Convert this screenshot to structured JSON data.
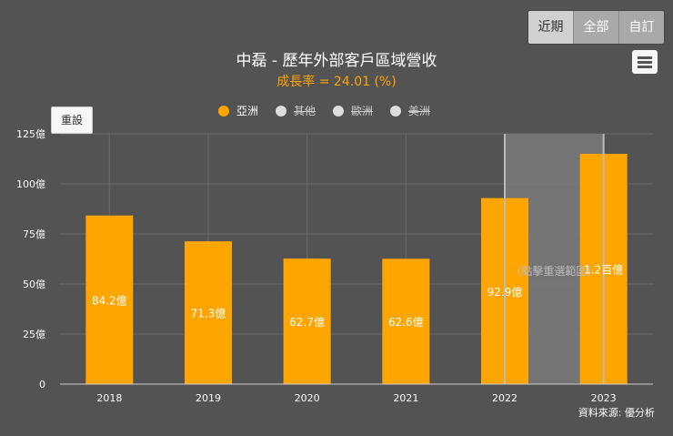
{
  "toolbar": {
    "buttons": [
      {
        "label": "近期",
        "active": true
      },
      {
        "label": "全部",
        "active": false
      },
      {
        "label": "自訂",
        "active": false
      }
    ],
    "menu_icon": "hamburger-icon",
    "reset_label": "重設"
  },
  "source": "資料來源: 優分析",
  "chart_data": {
    "type": "bar",
    "title": "中磊 - 歷年外部客戶區域營收",
    "subtitle": "成長率 = 24.01 (%)",
    "categories": [
      "2018",
      "2019",
      "2020",
      "2021",
      "2022",
      "2023"
    ],
    "series": [
      {
        "name": "亞洲",
        "color": "#ffa500",
        "visible": true,
        "values": [
          84.2,
          71.3,
          62.7,
          62.6,
          92.9,
          115
        ],
        "labels": [
          "84.2億",
          "71.3億",
          "62.7億",
          "62.6億",
          "92.9億",
          "1.2百億"
        ]
      },
      {
        "name": "其他",
        "color": "#dddddd",
        "visible": false
      },
      {
        "name": "歐洲",
        "color": "#dddddd",
        "visible": false
      },
      {
        "name": "美洲",
        "color": "#dddddd",
        "visible": false
      }
    ],
    "yticks": [
      "0",
      "25億",
      "50億",
      "75億",
      "100億",
      "125億"
    ],
    "ylim": [
      0,
      125
    ],
    "grid": true,
    "selection": {
      "range": [
        "2022",
        "2023"
      ],
      "label": "(點擊重選範圍)"
    }
  }
}
